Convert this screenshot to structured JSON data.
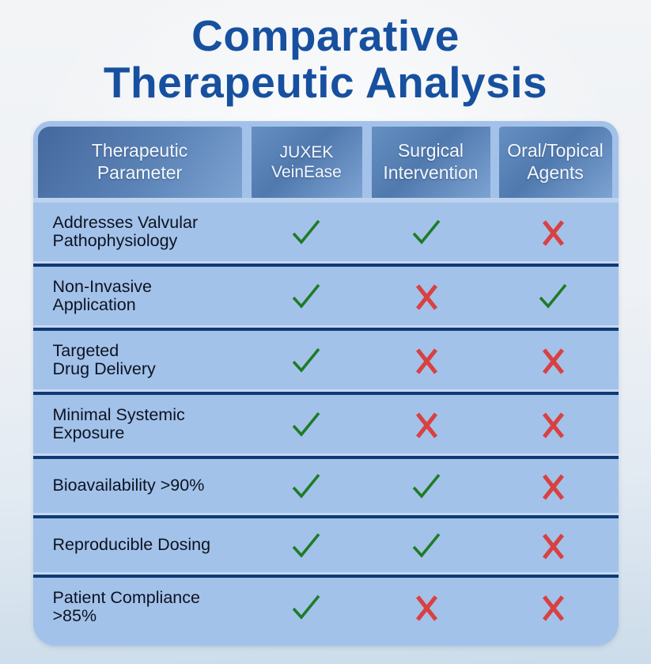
{
  "title": {
    "line1": "Comparative",
    "line2": "Therapeutic Analysis"
  },
  "header": {
    "col_parameter": "Therapeutic\nParameter",
    "col_product": "JUXEK\nVeinEase",
    "col_surgical": "Surgical\nIntervention",
    "col_oral": "Oral/Topical\nAgents"
  },
  "rows": [
    {
      "label": "Addresses Valvular\nPathophysiology",
      "marks": [
        "check",
        "check",
        "cross"
      ]
    },
    {
      "label": "Non-Invasive\nApplication",
      "marks": [
        "check",
        "cross",
        "check"
      ]
    },
    {
      "label": "Targeted\nDrug Delivery",
      "marks": [
        "check",
        "cross",
        "cross"
      ]
    },
    {
      "label": "Minimal Systemic\nExposure",
      "marks": [
        "check",
        "cross",
        "cross"
      ]
    },
    {
      "label": "Bioavailability >90%",
      "marks": [
        "check",
        "check",
        "cross"
      ]
    },
    {
      "label": "Reproducible Dosing",
      "marks": [
        "check",
        "check",
        "cross"
      ]
    },
    {
      "label": "Patient Compliance\n>85%",
      "marks": [
        "check",
        "cross",
        "cross"
      ]
    }
  ],
  "chart_data": {
    "type": "table",
    "title": "Comparative Therapeutic Analysis",
    "columns": [
      "Therapeutic Parameter",
      "JUXEK VeinEase",
      "Surgical Intervention",
      "Oral/Topical Agents"
    ],
    "rows": [
      {
        "parameter": "Addresses Valvular Pathophysiology",
        "juxek_veinease": "yes",
        "surgical_intervention": "yes",
        "oral_topical_agents": "no"
      },
      {
        "parameter": "Non-Invasive Application",
        "juxek_veinease": "yes",
        "surgical_intervention": "no",
        "oral_topical_agents": "yes"
      },
      {
        "parameter": "Targeted Drug Delivery",
        "juxek_veinease": "yes",
        "surgical_intervention": "no",
        "oral_topical_agents": "no"
      },
      {
        "parameter": "Minimal Systemic Exposure",
        "juxek_veinease": "yes",
        "surgical_intervention": "no",
        "oral_topical_agents": "no"
      },
      {
        "parameter": "Bioavailability >90%",
        "juxek_veinease": "yes",
        "surgical_intervention": "yes",
        "oral_topical_agents": "no"
      },
      {
        "parameter": "Reproducible Dosing",
        "juxek_veinease": "yes",
        "surgical_intervention": "yes",
        "oral_topical_agents": "no"
      },
      {
        "parameter": "Patient Compliance >85%",
        "juxek_veinease": "yes",
        "surgical_intervention": "no",
        "oral_topical_agents": "no"
      }
    ],
    "legend": {
      "check": "supported",
      "cross": "not supported"
    }
  },
  "colors": {
    "title_blue": "#17509f",
    "table_light_blue": "#a3c2e9",
    "header_dark_blue": "#44689e",
    "header_mid_blue": "#5079ae",
    "header_light_blue": "#7da3d2",
    "separator_navy": "#0e3a74",
    "separator_highlight": "#c6d9f3",
    "label_text": "#0c1322",
    "header_text": "#f3f7fc",
    "check_green": "#1e7c25",
    "cross_red": "#d94141"
  }
}
